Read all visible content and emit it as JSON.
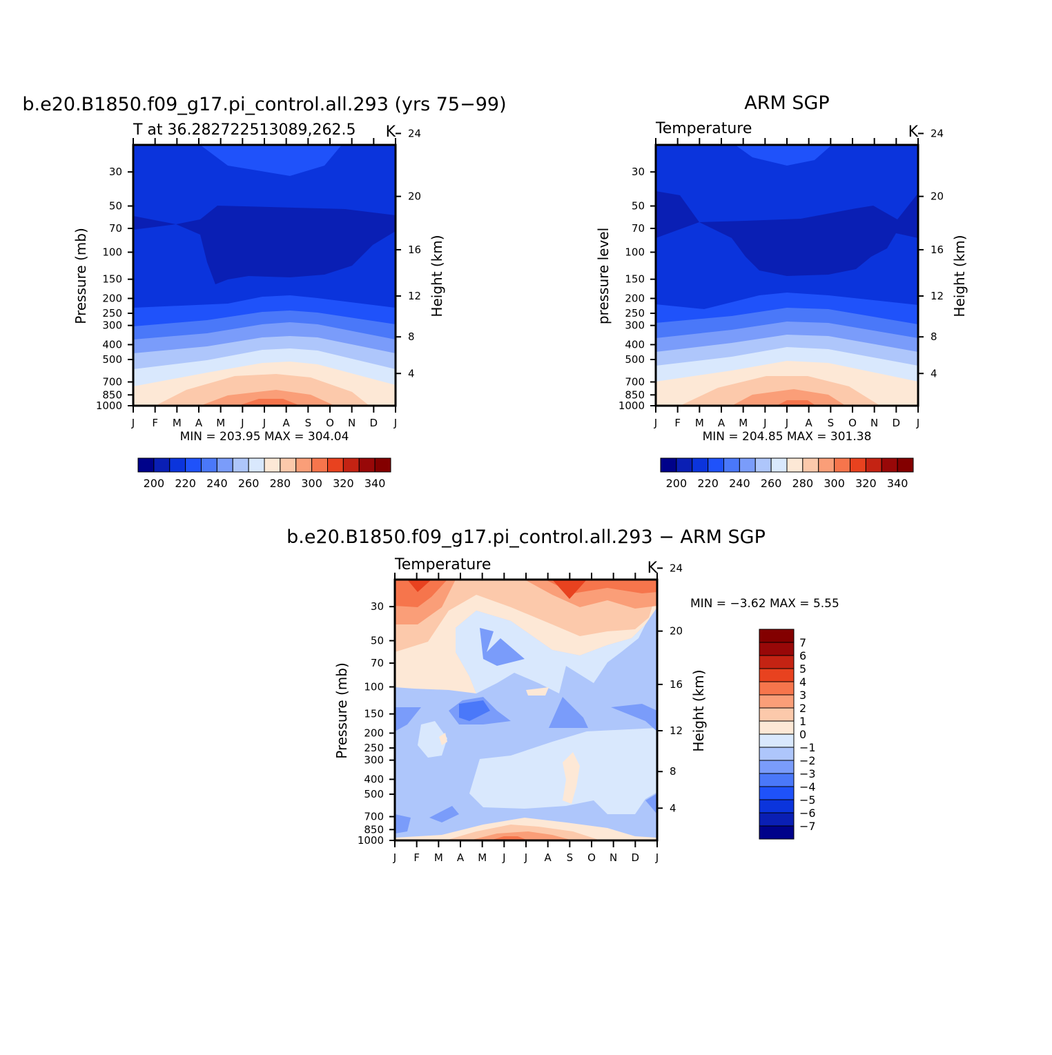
{
  "chart_data": [
    {
      "id": "model",
      "type": "contour",
      "title": "b.e20.B1850.f09_g17.pi_control.all.293 (yrs 75−99)",
      "subtitle": "T at 36.282722513089,262.5",
      "units": "K",
      "ylabel": "Pressure (mb)",
      "ylabel_right": "Height (km)",
      "y_scale": "log",
      "y_ticks": [
        "30",
        "50",
        "70",
        "100",
        "150",
        "200",
        "250",
        "300",
        "400",
        "500",
        "700",
        "850",
        "1000"
      ],
      "y_right_ticks": [
        "24",
        "20",
        "16",
        "12",
        "8",
        "4"
      ],
      "x_ticks": [
        "J",
        "F",
        "M",
        "A",
        "M",
        "J",
        "J",
        "A",
        "S",
        "O",
        "N",
        "D",
        "J"
      ],
      "min_label": "MIN = 203.95 MAX = 304.04",
      "stats": {
        "min": 203.95,
        "max": 304.04
      },
      "levels": [
        200,
        210,
        220,
        230,
        240,
        250,
        260,
        270,
        280,
        290,
        300,
        310,
        320,
        330,
        340
      ],
      "colorbar_labels": [
        "200",
        "220",
        "240",
        "260",
        "280",
        "300",
        "320",
        "340"
      ],
      "colors": [
        "#00028a",
        "#0a1fb4",
        "#0b34dc",
        "#1f52fa",
        "#4a78f9",
        "#7a9cfa",
        "#aec6fb",
        "#d9e8fd",
        "#fde8d6",
        "#fcc9ab",
        "#fa9e78",
        "#f6754c",
        "#e8421f",
        "#c42313",
        "#980808",
        "#830000"
      ]
    },
    {
      "id": "obs",
      "type": "contour",
      "title": "ARM SGP",
      "subtitle": "Temperature",
      "units": "K",
      "ylabel": "pressure level",
      "ylabel_right": "Height (km)",
      "y_scale": "log",
      "y_ticks": [
        "30",
        "50",
        "70",
        "100",
        "150",
        "200",
        "250",
        "300",
        "400",
        "500",
        "700",
        "850",
        "1000"
      ],
      "y_right_ticks": [
        "24",
        "20",
        "16",
        "12",
        "8",
        "4"
      ],
      "x_ticks": [
        "J",
        "F",
        "M",
        "A",
        "M",
        "J",
        "J",
        "A",
        "S",
        "O",
        "N",
        "D",
        "J"
      ],
      "min_label": "MIN = 204.85 MAX = 301.38",
      "stats": {
        "min": 204.85,
        "max": 301.38
      },
      "levels": [
        200,
        210,
        220,
        230,
        240,
        250,
        260,
        270,
        280,
        290,
        300,
        310,
        320,
        330,
        340
      ],
      "colorbar_labels": [
        "200",
        "220",
        "240",
        "260",
        "280",
        "300",
        "320",
        "340"
      ],
      "colors": [
        "#00028a",
        "#0a1fb4",
        "#0b34dc",
        "#1f52fa",
        "#4a78f9",
        "#7a9cfa",
        "#aec6fb",
        "#d9e8fd",
        "#fde8d6",
        "#fcc9ab",
        "#fa9e78",
        "#f6754c",
        "#e8421f",
        "#c42313",
        "#980808",
        "#830000"
      ]
    },
    {
      "id": "diff",
      "type": "contour",
      "title": "b.e20.B1850.f09_g17.pi_control.all.293 − ARM SGP",
      "subtitle": "Temperature",
      "units": "K",
      "ylabel": "Pressure (mb)",
      "ylabel_right": "Height (km)",
      "y_scale": "log",
      "y_ticks": [
        "30",
        "50",
        "70",
        "100",
        "150",
        "200",
        "250",
        "300",
        "400",
        "500",
        "700",
        "850",
        "1000"
      ],
      "y_right_ticks": [
        "24",
        "20",
        "16",
        "12",
        "8",
        "4"
      ],
      "x_ticks": [
        "J",
        "F",
        "M",
        "A",
        "M",
        "J",
        "J",
        "A",
        "S",
        "O",
        "N",
        "D",
        "J"
      ],
      "min_label": "MIN = −3.62 MAX = 5.55",
      "stats": {
        "min": -3.62,
        "max": 5.55
      },
      "levels": [
        -7,
        -6,
        -5,
        -4,
        -3,
        -2,
        -1,
        0,
        1,
        2,
        3,
        4,
        5,
        6,
        7
      ],
      "colorbar_labels": [
        "7",
        "6",
        "5",
        "4",
        "3",
        "2",
        "1",
        "0",
        "−1",
        "−2",
        "−3",
        "−4",
        "−5",
        "−6",
        "−7"
      ],
      "colors": [
        "#00028a",
        "#0a1fb4",
        "#0b34dc",
        "#1f52fa",
        "#4a78f9",
        "#7a9cfa",
        "#aec6fb",
        "#d9e8fd",
        "#fde8d6",
        "#fcc9ab",
        "#fa9e78",
        "#f6754c",
        "#e8421f",
        "#c42313",
        "#980808",
        "#830000"
      ]
    }
  ]
}
